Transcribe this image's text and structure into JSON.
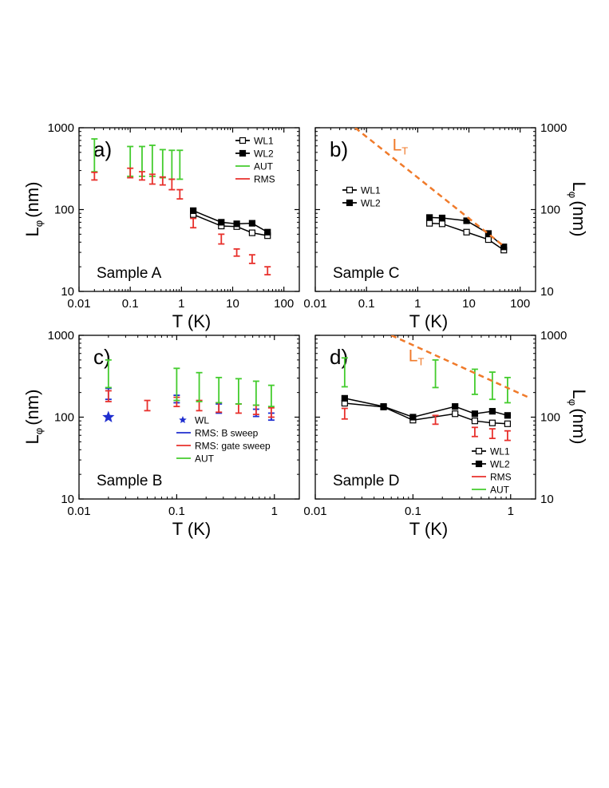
{
  "figure": {
    "ylabel_main": "L",
    "ylabel_sub": "φ",
    "ylabel_unit": "(nm)",
    "xlabel_top": "T (K)",
    "xlabel_bottom": "T (K)"
  },
  "colors": {
    "black": "#000000",
    "green": "#44cc2e",
    "red": "#e8312c",
    "blue": "#1f2ecf",
    "orange": "#f07a2a"
  },
  "chart_data": [
    {
      "id": "a",
      "type": "scatter",
      "panel_label": "a)",
      "sample_label": "Sample A",
      "xscale": "log",
      "yscale": "log",
      "xlim": [
        0.01,
        200
      ],
      "ylim": [
        10,
        1000
      ],
      "xticks": [
        0.01,
        0.1,
        1,
        10,
        100
      ],
      "xtick_labels": [
        "0.01",
        "0.1",
        "1",
        "10",
        "100"
      ],
      "yticks": [
        10,
        100,
        1000
      ],
      "ytick_labels": [
        "10",
        "100",
        "1000"
      ],
      "show_xticklabels": true,
      "show_yticklabels": true,
      "xlabel": "T (K)",
      "ylabel": "Lφ (nm)",
      "legend_position": "top-right",
      "series": [
        {
          "name": "WL1",
          "kind": "line-open",
          "color": "black",
          "x": [
            1.7,
            6,
            12,
            24,
            48
          ],
          "y": [
            87,
            63,
            62,
            52,
            48
          ]
        },
        {
          "name": "WL2",
          "kind": "line-filled",
          "color": "black",
          "x": [
            1.7,
            6,
            12,
            24,
            48
          ],
          "y": [
            97,
            70,
            67,
            68,
            53
          ]
        },
        {
          "name": "AUT",
          "kind": "bar",
          "color": "green",
          "x": [
            0.02,
            0.1,
            0.17,
            0.27,
            0.43,
            0.65,
            0.93
          ],
          "low": [
            290,
            255,
            255,
            255,
            245,
            235,
            235
          ],
          "high": [
            730,
            590,
            590,
            610,
            540,
            530,
            530
          ]
        },
        {
          "name": "RMS",
          "kind": "bar",
          "color": "red",
          "x": [
            0.02,
            0.1,
            0.17,
            0.27,
            0.43,
            0.65,
            0.93,
            1.7,
            6,
            12,
            24,
            48
          ],
          "low": [
            230,
            245,
            230,
            205,
            200,
            175,
            135,
            60,
            38,
            27,
            22,
            16
          ],
          "high": [
            285,
            320,
            290,
            270,
            250,
            235,
            175,
            78,
            50,
            33,
            28,
            20
          ]
        }
      ]
    },
    {
      "id": "b",
      "type": "line",
      "panel_label": "b)",
      "sample_label": "Sample C",
      "xscale": "log",
      "yscale": "log",
      "xlim": [
        0.01,
        200
      ],
      "ylim": [
        10,
        1000
      ],
      "xticks": [
        0.01,
        0.1,
        1,
        10,
        100
      ],
      "xtick_labels": [
        "0.01",
        "0.1",
        "1",
        "10",
        "100"
      ],
      "yticks": [
        10,
        100,
        1000
      ],
      "ytick_labels": [
        "10",
        "100",
        "1000"
      ],
      "show_xticklabels": true,
      "show_yticklabels": false,
      "right_yticklabels": true,
      "xlabel": "T (K)",
      "ylabel": "Lφ (nm)",
      "legend_position": "middle-left",
      "annotation": {
        "text": "L",
        "sub": "T",
        "color": "orange",
        "x": 0.32,
        "y": 530
      },
      "series": [
        {
          "name": "WL1",
          "kind": "line-open",
          "color": "black",
          "x": [
            1.7,
            3,
            9,
            24,
            48
          ],
          "y": [
            68,
            67,
            53,
            43,
            32
          ]
        },
        {
          "name": "WL2",
          "kind": "line-filled",
          "color": "black",
          "x": [
            1.7,
            3,
            9,
            24,
            48
          ],
          "y": [
            80,
            79,
            73,
            51,
            35
          ]
        },
        {
          "name": "LT",
          "kind": "dash",
          "color": "orange",
          "x": [
            0.06,
            50
          ],
          "y": [
            1000,
            35
          ]
        }
      ]
    },
    {
      "id": "c",
      "type": "scatter",
      "panel_label": "c)",
      "sample_label": "Sample B",
      "xscale": "log",
      "yscale": "log",
      "xlim": [
        0.01,
        1.8
      ],
      "ylim": [
        10,
        1000
      ],
      "xticks": [
        0.01,
        0.1,
        1
      ],
      "xtick_labels": [
        "0.01",
        "0.1",
        "1"
      ],
      "yticks": [
        10,
        100,
        1000
      ],
      "ytick_labels": [
        "10",
        "100",
        "1000"
      ],
      "show_xticklabels": true,
      "show_yticklabels": true,
      "xlabel": "T (K)",
      "ylabel": "Lφ (nm)",
      "legend_position": "bottom-right",
      "series": [
        {
          "name": "WL",
          "kind": "star",
          "color": "blue",
          "x": [
            0.02
          ],
          "y": [
            100
          ]
        },
        {
          "name": "RMS: B sweep",
          "kind": "bar",
          "color": "blue",
          "x": [
            0.02,
            0.1,
            0.27,
            0.65,
            0.93
          ],
          "low": [
            165,
            150,
            112,
            102,
            92
          ],
          "high": [
            225,
            185,
            145,
            125,
            112
          ]
        },
        {
          "name": "RMS: gate sweep",
          "kind": "bar",
          "color": "red",
          "x": [
            0.02,
            0.05,
            0.1,
            0.17,
            0.27,
            0.43,
            0.65,
            0.93
          ],
          "low": [
            155,
            120,
            135,
            120,
            115,
            112,
            108,
            100
          ],
          "high": [
            210,
            160,
            175,
            160,
            150,
            145,
            140,
            130
          ]
        },
        {
          "name": "AUT",
          "kind": "bar",
          "color": "green",
          "x": [
            0.02,
            0.1,
            0.17,
            0.27,
            0.43,
            0.65,
            0.93
          ],
          "low": [
            230,
            160,
            155,
            150,
            145,
            140,
            135
          ],
          "high": [
            500,
            395,
            350,
            305,
            295,
            275,
            245
          ]
        }
      ]
    },
    {
      "id": "d",
      "type": "scatter",
      "panel_label": "d)",
      "sample_label": "Sample D",
      "xscale": "log",
      "yscale": "log",
      "xlim": [
        0.01,
        1.8
      ],
      "ylim": [
        10,
        1000
      ],
      "xticks": [
        0.01,
        0.1,
        1
      ],
      "xtick_labels": [
        "0.01",
        "0.1",
        "1"
      ],
      "yticks": [
        10,
        100,
        1000
      ],
      "ytick_labels": [
        "10",
        "100",
        "1000"
      ],
      "show_xticklabels": true,
      "show_yticklabels": false,
      "right_yticklabels": true,
      "xlabel": "T (K)",
      "ylabel": "Lφ (nm)",
      "legend_position": "bottom-right",
      "annotation": {
        "text": "L",
        "sub": "T",
        "color": "orange",
        "x": 0.09,
        "y": 480
      },
      "series": [
        {
          "name": "WL1",
          "kind": "line-open",
          "color": "black",
          "x": [
            0.02,
            0.05,
            0.1,
            0.27,
            0.43,
            0.65,
            0.93
          ],
          "y": [
            148,
            133,
            92,
            110,
            90,
            85,
            83
          ]
        },
        {
          "name": "WL2",
          "kind": "line-filled",
          "color": "black",
          "x": [
            0.02,
            0.05,
            0.1,
            0.27,
            0.43,
            0.65,
            0.93
          ],
          "y": [
            170,
            135,
            100,
            135,
            110,
            118,
            105
          ]
        },
        {
          "name": "RMS",
          "kind": "bar",
          "color": "red",
          "x": [
            0.02,
            0.17,
            0.43,
            0.65,
            0.93
          ],
          "low": [
            95,
            82,
            58,
            55,
            52
          ],
          "high": [
            128,
            105,
            75,
            72,
            68
          ]
        },
        {
          "name": "AUT",
          "kind": "bar",
          "color": "green",
          "x": [
            0.02,
            0.17,
            0.43,
            0.65,
            0.93
          ],
          "low": [
            235,
            230,
            190,
            165,
            150
          ],
          "high": [
            530,
            500,
            385,
            355,
            305
          ]
        },
        {
          "name": "LT",
          "kind": "dash",
          "color": "orange",
          "x": [
            0.06,
            1.6
          ],
          "y": [
            1000,
            170
          ]
        }
      ]
    }
  ]
}
